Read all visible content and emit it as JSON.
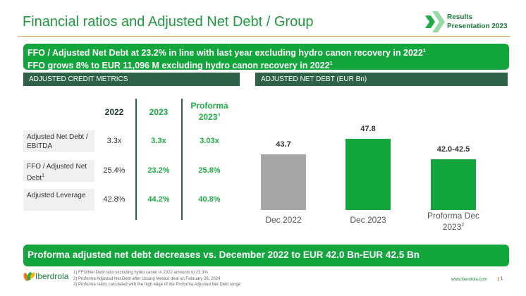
{
  "header": {
    "title": "Financial ratios and Adjusted Net Debt / Group",
    "brand_line1": "Results",
    "brand_line2": "Presentation 2023"
  },
  "banner_top": {
    "line1": "FFO / Adjusted Net Debt at 23.2% in line with last year excluding hydro canon recovery in 2022",
    "line1_sup": "1",
    "line2": "FFO grows 8% to EUR 11,096 M excluding hydro canon recovery in 2022",
    "line2_sup": "1"
  },
  "credit_metrics": {
    "section_title": "ADJUSTED CREDIT METRICS",
    "columns": [
      "2022",
      "2023",
      "Proforma 2023"
    ],
    "proforma_sup": "3",
    "rows": [
      {
        "label": "Adjusted Net Debt / EBITDA",
        "values": [
          "3.3x",
          "3.3x",
          "3.03x"
        ]
      },
      {
        "label": "FFO / Adjusted Net Debt",
        "sup": "1",
        "values": [
          "25.4%",
          "23.2%",
          "25.8%"
        ]
      },
      {
        "label": "Adjusted Leverage",
        "values": [
          "42.8%",
          "44.2%",
          "40.8%"
        ]
      }
    ]
  },
  "chart_data": {
    "type": "bar",
    "title": "ADJUSTED NET DEBT (EUR Bn)",
    "categories": [
      "Dec 2022",
      "Dec 2023",
      "Proforma Dec 2023"
    ],
    "category_sup": [
      "",
      "",
      "2"
    ],
    "values": [
      43.7,
      47.8,
      42.5
    ],
    "labels": [
      "43.7",
      "47.8",
      "42.0-42.5"
    ],
    "colors": [
      "#a6a6a6",
      "#12a63c",
      "#12a63c"
    ],
    "grid": false
  },
  "banner_bottom": {
    "text": "Proforma adjusted net debt decreases vs. December 2022 to EUR 42.0 Bn-EUR 42.5 Bn"
  },
  "footer": {
    "logo": "Iberdrola",
    "notes": [
      "1)   FFO/Net Debt ratio excluding hydro canon in 2022 amounts to 23.3%",
      "2)   Proforma Adjusted Net Debt after closing Mexico deal on February 26, 2024",
      "3)   Proforma ratios calculated with the high edge of the Proforma Adjusted Net Debt range"
    ],
    "url": "www.iberdrola.com",
    "page": "1"
  }
}
